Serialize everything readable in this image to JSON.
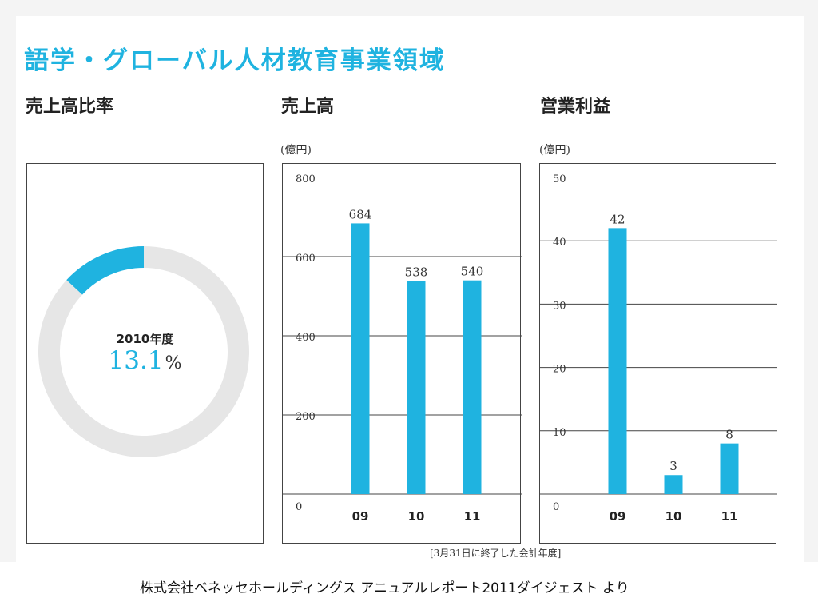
{
  "title": "語学・グローバル人材教育事業領域",
  "colors": {
    "accent": "#1fb3e0",
    "ring": "#e6e6e6",
    "text": "#222222"
  },
  "sections": {
    "ratio": {
      "title": "売上高比率"
    },
    "sales": {
      "title": "売上高",
      "unit": "(億円)"
    },
    "profit": {
      "title": "営業利益",
      "unit": "(億円)"
    }
  },
  "chart_data": [
    {
      "type": "pie",
      "variant": "donut",
      "title": "売上高比率",
      "center_label": "2010年度",
      "center_value": "13.1",
      "center_unit": "%",
      "slices": [
        {
          "value": 13.1,
          "highlight": true
        },
        {
          "value": 86.9,
          "highlight": false
        }
      ]
    },
    {
      "type": "bar",
      "title": "売上高",
      "ylabel": "(億円)",
      "categories": [
        "09",
        "10",
        "11"
      ],
      "values": [
        684,
        538,
        540
      ],
      "ylim": [
        0,
        800
      ],
      "yticks": [
        0,
        200,
        400,
        600,
        800
      ],
      "grid": true
    },
    {
      "type": "bar",
      "title": "営業利益",
      "ylabel": "(億円)",
      "categories": [
        "09",
        "10",
        "11"
      ],
      "values": [
        42,
        3,
        8
      ],
      "ylim": [
        0,
        50
      ],
      "yticks": [
        0,
        10,
        20,
        30,
        40,
        50
      ],
      "grid": true
    }
  ],
  "footnote": "[3月31日に終了した会計年度]",
  "source": "株式会社ベネッセホールディングス アニュアルレポート2011ダイジェスト より"
}
